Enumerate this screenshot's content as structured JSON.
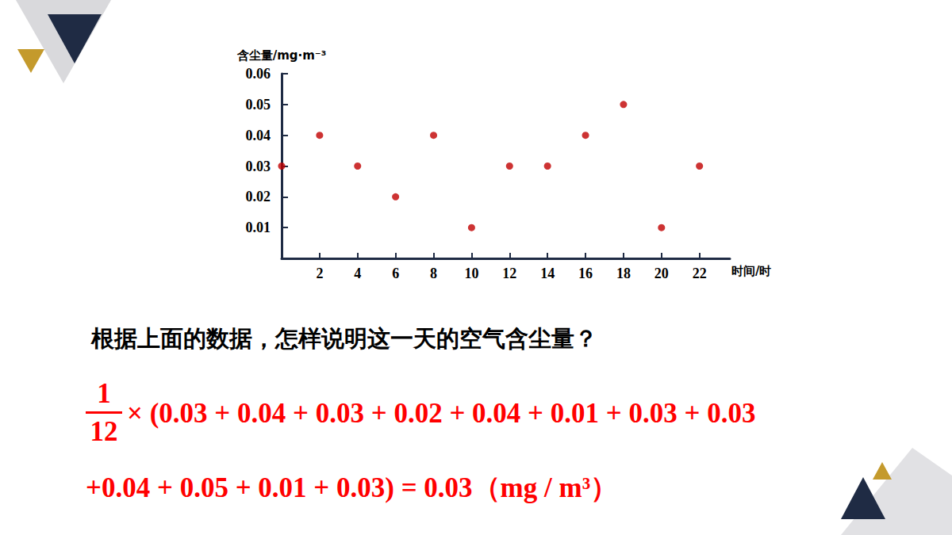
{
  "chart_data": {
    "type": "scatter",
    "x": [
      0,
      2,
      4,
      6,
      8,
      10,
      12,
      14,
      16,
      18,
      20,
      22
    ],
    "values": [
      0.03,
      0.04,
      0.03,
      0.02,
      0.04,
      0.01,
      0.03,
      0.03,
      0.04,
      0.05,
      0.01,
      0.03
    ],
    "color": "#c00000",
    "marker": "circle",
    "xlabel": "时间/时",
    "ylabel": "含尘量/mg·m⁻³",
    "xlim": [
      0,
      23.6
    ],
    "xticks": [
      2,
      4,
      6,
      8,
      10,
      12,
      14,
      16,
      18,
      20,
      22
    ],
    "ylim": [
      0,
      0.06
    ],
    "yticks": [
      0.01,
      0.02,
      0.03,
      0.04,
      0.05,
      0.06
    ],
    "grid": false
  },
  "question": "根据上面的数据，怎样说明这一天的空气含尘量？",
  "formula": {
    "numerator": "1",
    "denominator": "12",
    "lines": [
      "× (0.03 + 0.04 + 0.03 + 0.02 + 0.04 + 0.01 + 0.03 + 0.03",
      "+0.04 + 0.05 + 0.01 + 0.03) = 0.03（mg / m³）"
    ]
  }
}
